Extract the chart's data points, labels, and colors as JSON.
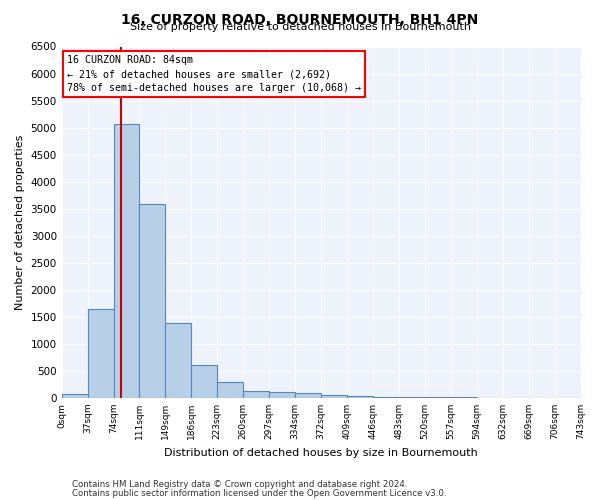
{
  "title": "16, CURZON ROAD, BOURNEMOUTH, BH1 4PN",
  "subtitle": "Size of property relative to detached houses in Bournemouth",
  "xlabel": "Distribution of detached houses by size in Bournemouth",
  "ylabel": "Number of detached properties",
  "bar_values": [
    70,
    1640,
    5070,
    3580,
    1390,
    610,
    290,
    130,
    110,
    90,
    50,
    30,
    20,
    15,
    10,
    8,
    5,
    3,
    2,
    2
  ],
  "bar_labels": [
    "0sqm",
    "37sqm",
    "74sqm",
    "111sqm",
    "149sqm",
    "186sqm",
    "223sqm",
    "260sqm",
    "297sqm",
    "334sqm",
    "372sqm",
    "409sqm",
    "446sqm",
    "483sqm",
    "520sqm",
    "557sqm",
    "594sqm",
    "632sqm",
    "669sqm",
    "706sqm",
    "743sqm"
  ],
  "bar_color": "#b8cfe8",
  "bar_edge_color": "#5588bb",
  "annotation_line1": "16 CURZON ROAD: 84sqm",
  "annotation_line2": "← 21% of detached houses are smaller (2,692)",
  "annotation_line3": "78% of semi-detached houses are larger (10,068) →",
  "vline_color": "#cc0000",
  "ylim_max": 6500,
  "yticks": [
    0,
    500,
    1000,
    1500,
    2000,
    2500,
    3000,
    3500,
    4000,
    4500,
    5000,
    5500,
    6000,
    6500
  ],
  "footnote1": "Contains HM Land Registry data © Crown copyright and database right 2024.",
  "footnote2": "Contains public sector information licensed under the Open Government Licence v3.0.",
  "bin_width": 37,
  "num_bins": 20,
  "property_size": 84,
  "background_color": "#eef2fa"
}
